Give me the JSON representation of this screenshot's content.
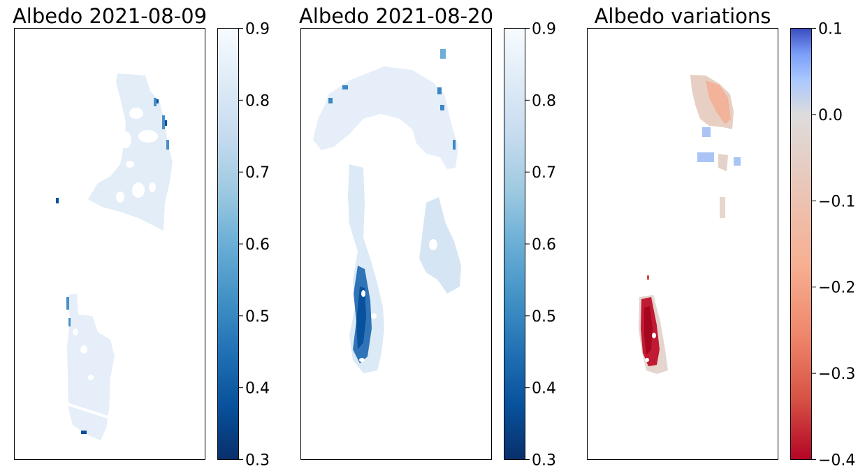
{
  "chart_data": [
    {
      "type": "heatmap",
      "title": "Albedo 2021-08-09",
      "colormap": "Blues_r",
      "colorbar": {
        "range": [
          0.3,
          0.9
        ],
        "ticks": [
          "0.3",
          "0.4",
          "0.5",
          "0.6",
          "0.7",
          "0.8",
          "0.9"
        ],
        "colors": [
          "#08306b",
          "#08519c",
          "#2171b5",
          "#4292c6",
          "#6baed6",
          "#9ecae1",
          "#c6dbef",
          "#deebf7",
          "#f7fbff"
        ]
      },
      "xticks": [],
      "yticks": [],
      "grid": false
    },
    {
      "type": "heatmap",
      "title": "Albedo 2021-08-20",
      "colormap": "Blues_r",
      "colorbar": {
        "range": [
          0.3,
          0.9
        ],
        "ticks": [
          "0.3",
          "0.4",
          "0.5",
          "0.6",
          "0.7",
          "0.8",
          "0.9"
        ],
        "colors": [
          "#08306b",
          "#08519c",
          "#2171b5",
          "#4292c6",
          "#6baed6",
          "#9ecae1",
          "#c6dbef",
          "#deebf7",
          "#f7fbff"
        ]
      },
      "xticks": [],
      "yticks": [],
      "grid": false
    },
    {
      "type": "heatmap",
      "title": "Albedo variations",
      "colormap": "coolwarm",
      "colorbar": {
        "range": [
          -0.4,
          0.1
        ],
        "ticks": [
          "−0.4",
          "−0.3",
          "−0.2",
          "−0.1",
          "0.0",
          "0.1"
        ],
        "colors": [
          "#b40426",
          "#d65244",
          "#ee8468",
          "#f7af91",
          "#dddcdc",
          "#aac7fd",
          "#7b9ff9",
          "#3b4cc0"
        ]
      },
      "xticks": [],
      "yticks": [],
      "grid": false
    }
  ]
}
